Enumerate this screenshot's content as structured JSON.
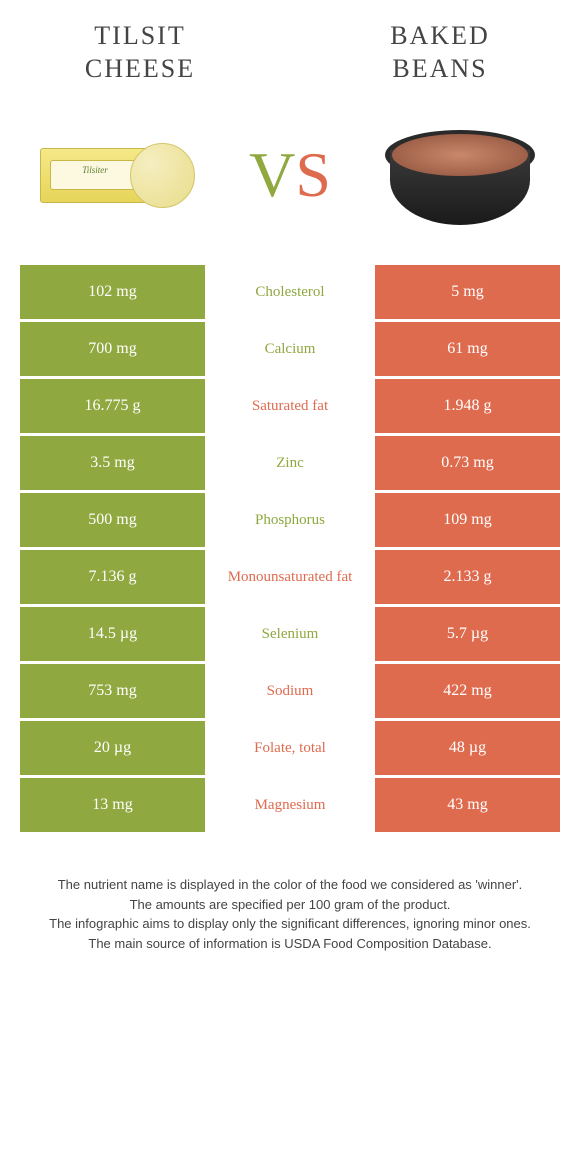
{
  "colors": {
    "left": "#8fa83f",
    "right": "#df6b4f",
    "text_on_bg": "#ffffff"
  },
  "food_left": {
    "title_line1": "TILSIT",
    "title_line2": "CHEESE",
    "pkg_label": "Tilsiter"
  },
  "food_right": {
    "title_line1": "BAKED",
    "title_line2": "BEANS"
  },
  "vs": {
    "v": "V",
    "s": "S"
  },
  "rows": [
    {
      "left": "102 mg",
      "label": "Cholesterol",
      "right": "5 mg",
      "winner": "left"
    },
    {
      "left": "700 mg",
      "label": "Calcium",
      "right": "61 mg",
      "winner": "left"
    },
    {
      "left": "16.775 g",
      "label": "Saturated fat",
      "right": "1.948 g",
      "winner": "right"
    },
    {
      "left": "3.5 mg",
      "label": "Zinc",
      "right": "0.73 mg",
      "winner": "left"
    },
    {
      "left": "500 mg",
      "label": "Phosphorus",
      "right": "109 mg",
      "winner": "left"
    },
    {
      "left": "7.136 g",
      "label": "Monounsaturated fat",
      "right": "2.133 g",
      "winner": "right"
    },
    {
      "left": "14.5 µg",
      "label": "Selenium",
      "right": "5.7 µg",
      "winner": "left"
    },
    {
      "left": "753 mg",
      "label": "Sodium",
      "right": "422 mg",
      "winner": "right"
    },
    {
      "left": "20 µg",
      "label": "Folate, total",
      "right": "48 µg",
      "winner": "right"
    },
    {
      "left": "13 mg",
      "label": "Magnesium",
      "right": "43 mg",
      "winner": "right"
    }
  ],
  "footer": {
    "l1": "The nutrient name is displayed in the color of the food we considered as 'winner'.",
    "l2": "The amounts are specified per 100 gram of the product.",
    "l3": "The infographic aims to display only the significant differences, ignoring minor ones.",
    "l4": "The main source of information is USDA Food Composition Database."
  }
}
